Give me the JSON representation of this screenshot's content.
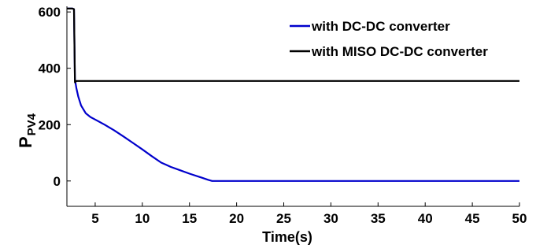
{
  "chart_data": {
    "type": "line",
    "xlabel": "Time(s)",
    "ylabel_main": "P",
    "ylabel_sub": "PV4",
    "xlim": [
      2,
      50
    ],
    "ylim": [
      -90,
      620
    ],
    "xticks": [
      5,
      10,
      15,
      20,
      25,
      30,
      35,
      40,
      45,
      50
    ],
    "yticks": [
      0,
      200,
      400,
      600
    ],
    "grid": false,
    "legend_position": "top-right",
    "series": [
      {
        "name": "with DC-DC converter",
        "color": "#0000cc",
        "x": [
          2.0,
          2.6,
          2.75,
          2.85,
          3.0,
          3.2,
          3.5,
          4.0,
          4.5,
          5.0,
          6.0,
          7.0,
          8.0,
          9.0,
          10.0,
          11.0,
          12.0,
          12.5,
          13.0,
          14.0,
          15.0,
          16.0,
          17.0,
          17.4,
          18.0,
          25.0,
          30.0,
          35.0,
          40.0,
          45.0,
          50.0
        ],
        "y": [
          612,
          612,
          610,
          360,
          330,
          300,
          268,
          240,
          227,
          218,
          200,
          180,
          158,
          135,
          112,
          88,
          65,
          58,
          50,
          38,
          26,
          15,
          4,
          0,
          0,
          0,
          0,
          0,
          0,
          0,
          0
        ]
      },
      {
        "name": "with MISO DC-DC converter",
        "color": "#000000",
        "x": [
          2.0,
          2.6,
          2.75,
          2.85,
          3.0,
          10.0,
          20.0,
          30.0,
          40.0,
          50.0
        ],
        "y": [
          612,
          612,
          610,
          350,
          355,
          355,
          355,
          355,
          355,
          355
        ]
      }
    ]
  }
}
